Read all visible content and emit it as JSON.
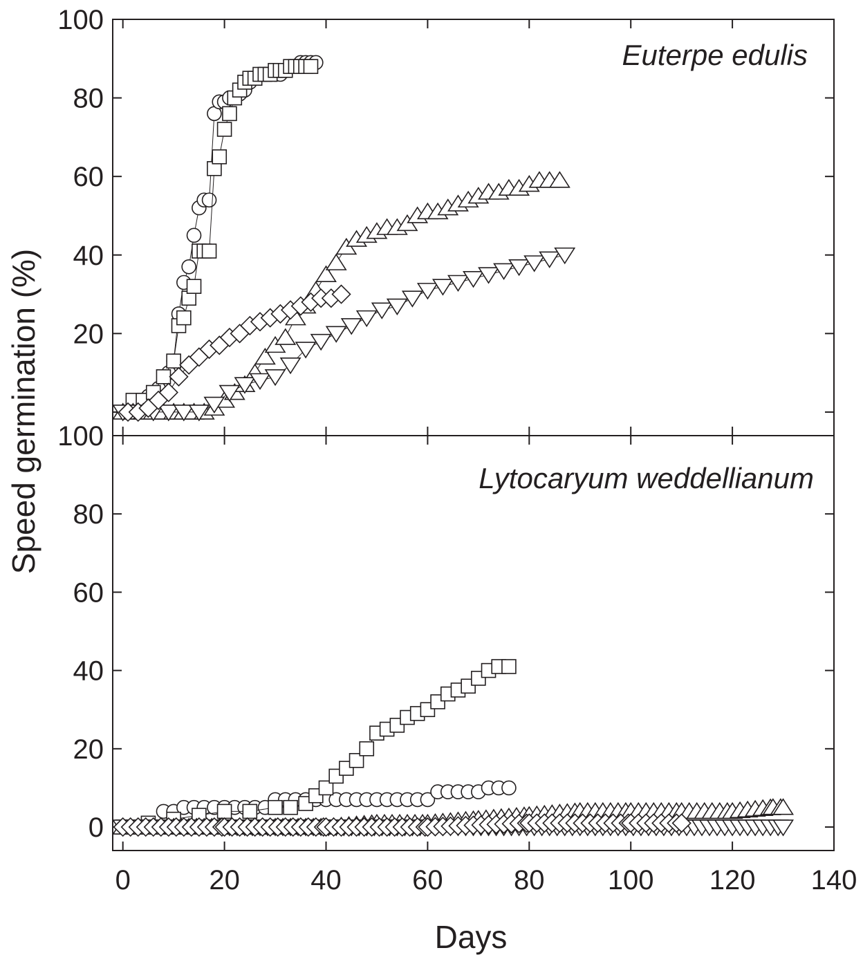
{
  "x_axis": {
    "label": "Days",
    "ticks": [
      0,
      20,
      40,
      60,
      80,
      100,
      120,
      140
    ],
    "tick_labels": [
      "0",
      "20",
      "40",
      "60",
      "80",
      "100",
      "120",
      "140"
    ]
  },
  "y_axis": {
    "label": "Speed germination (%)"
  },
  "chart_data": [
    {
      "type": "line",
      "title": "Euterpe edulis",
      "xlabel": "Days",
      "ylabel": "Speed germination (%)",
      "xlim": [
        -2,
        140
      ],
      "ylim": [
        -6,
        100
      ],
      "yticks": [
        0,
        20,
        40,
        60,
        80,
        100
      ],
      "ytick_labels": [
        "",
        "20",
        "40",
        "60",
        "80",
        "100"
      ],
      "grid": false,
      "legend": "none",
      "series": [
        {
          "marker": "circle",
          "x": [
            3,
            5,
            7,
            9,
            10,
            11,
            12,
            13,
            14,
            15,
            16,
            17,
            18,
            19,
            20,
            21,
            22,
            23,
            24,
            25,
            26,
            27,
            28,
            29,
            30,
            31,
            32,
            33,
            34,
            35,
            36,
            37,
            38
          ],
          "y": [
            3,
            4,
            6,
            10,
            13,
            25,
            33,
            37,
            45,
            52,
            54,
            54,
            76,
            79,
            79,
            80,
            80,
            81,
            82,
            84,
            85,
            86,
            86,
            86,
            86,
            86,
            87,
            88,
            88,
            89,
            89,
            89,
            89
          ]
        },
        {
          "marker": "square",
          "x": [
            2,
            4,
            6,
            8,
            10,
            11,
            12,
            13,
            14,
            15,
            16,
            17,
            18,
            19,
            20,
            21,
            22,
            23,
            24,
            25,
            26,
            27,
            28,
            29,
            30,
            31,
            32,
            33,
            34,
            35,
            36,
            37
          ],
          "y": [
            3,
            3,
            5,
            9,
            13,
            22,
            24,
            29,
            32,
            41,
            41,
            41,
            62,
            65,
            72,
            76,
            80,
            82,
            84,
            85,
            85,
            86,
            86,
            86,
            87,
            87,
            87,
            88,
            88,
            88,
            88,
            88
          ]
        },
        {
          "marker": "triangle-up",
          "x": [
            0,
            2,
            4,
            6,
            8,
            10,
            12,
            14,
            16,
            18,
            20,
            22,
            24,
            26,
            28,
            30,
            32,
            34,
            36,
            38,
            40,
            42,
            44,
            46,
            48,
            50,
            52,
            54,
            56,
            58,
            60,
            62,
            64,
            66,
            68,
            70,
            72,
            74,
            76,
            78,
            80,
            82,
            84,
            86
          ],
          "y": [
            0,
            0,
            0,
            0,
            0,
            0,
            0,
            0,
            0,
            1,
            3,
            5,
            7,
            10,
            14,
            17,
            19,
            24,
            27,
            31,
            35,
            38,
            42,
            44,
            45,
            46,
            47,
            47,
            48,
            50,
            51,
            51,
            52,
            53,
            54,
            55,
            56,
            56,
            57,
            57,
            58,
            59,
            59,
            59
          ]
        },
        {
          "marker": "triangle-down",
          "x": [
            0,
            3,
            6,
            9,
            12,
            15,
            18,
            21,
            24,
            27,
            30,
            33,
            36,
            39,
            42,
            45,
            48,
            51,
            54,
            57,
            60,
            63,
            66,
            69,
            72,
            75,
            78,
            81,
            84,
            87
          ],
          "y": [
            0,
            0,
            0,
            0,
            0,
            0,
            2,
            5,
            7,
            8,
            9,
            12,
            16,
            18,
            20,
            22,
            24,
            26,
            27,
            29,
            31,
            32,
            33,
            34,
            35,
            36,
            37,
            38,
            39,
            40
          ]
        },
        {
          "marker": "diamond",
          "x": [
            1,
            3,
            5,
            7,
            9,
            11,
            13,
            15,
            17,
            19,
            21,
            23,
            25,
            27,
            29,
            31,
            33,
            35,
            37,
            39,
            41,
            43
          ],
          "y": [
            0,
            0,
            1,
            3,
            5,
            9,
            12,
            14,
            16,
            17,
            19,
            20,
            22,
            23,
            24,
            25,
            26,
            27,
            28,
            29,
            29,
            30
          ]
        }
      ]
    },
    {
      "type": "line",
      "title": "Lytocaryum weddellianum",
      "xlabel": "Days",
      "ylabel": "Speed germination (%)",
      "xlim": [
        -2,
        140
      ],
      "ylim": [
        -6,
        100
      ],
      "yticks": [
        0,
        20,
        40,
        60,
        80,
        100
      ],
      "ytick_labels": [
        "0",
        "20",
        "40",
        "60",
        "80",
        "100"
      ],
      "grid": false,
      "legend": "none",
      "series": [
        {
          "marker": "circle",
          "x": [
            8,
            10,
            12,
            14,
            16,
            18,
            20,
            22,
            24,
            26,
            28,
            30,
            32,
            34,
            36,
            38,
            40,
            42,
            44,
            46,
            48,
            50,
            52,
            54,
            56,
            58,
            60,
            62,
            64,
            66,
            68,
            70,
            72,
            74,
            76
          ],
          "y": [
            4,
            4,
            5,
            5,
            5,
            5,
            5,
            5,
            5,
            5,
            5,
            7,
            7,
            7,
            7,
            7,
            7,
            7,
            7,
            7,
            7,
            7,
            7,
            7,
            7,
            7,
            7,
            9,
            9,
            9,
            9,
            9,
            10,
            10,
            10
          ],
          "step": 2
        },
        {
          "marker": "square",
          "x": [
            0,
            5,
            10,
            15,
            20,
            25,
            30,
            33,
            36,
            38,
            40,
            42,
            44,
            46,
            48,
            50,
            52,
            54,
            56,
            58,
            60,
            62,
            64,
            66,
            68,
            70,
            72,
            74,
            76
          ],
          "y": [
            0,
            1,
            2,
            3,
            4,
            4,
            5,
            5,
            6,
            8,
            10,
            13,
            15,
            17,
            20,
            24,
            25,
            26,
            28,
            29,
            30,
            32,
            34,
            35,
            36,
            38,
            40,
            41,
            41
          ]
        },
        {
          "marker": "triangle-up",
          "x": [
            0,
            10,
            20,
            30,
            40,
            50,
            60,
            70,
            80,
            90,
            100,
            110,
            120,
            128,
            130
          ],
          "y": [
            0,
            0,
            0,
            0,
            0,
            1,
            1,
            2,
            3,
            4,
            4,
            4,
            4,
            5,
            5
          ],
          "step": 1.5
        },
        {
          "marker": "triangle-down",
          "x": [
            0,
            130
          ],
          "y": [
            0,
            0
          ],
          "step": 1.5
        },
        {
          "marker": "diamond",
          "x": [
            0,
            20,
            40,
            60,
            80,
            100,
            110
          ],
          "y": [
            0,
            0,
            0,
            0,
            1,
            1,
            1
          ],
          "step": 1.5
        }
      ]
    }
  ]
}
